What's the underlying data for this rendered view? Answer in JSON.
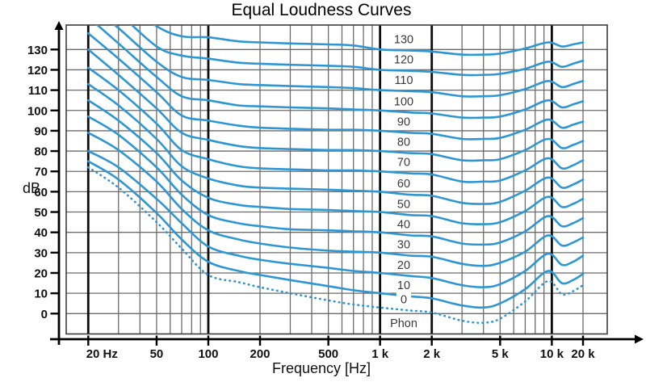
{
  "chart_data": {
    "type": "line",
    "title": "Equal Loudness Curves",
    "xlabel": "Frequency [Hz]",
    "ylabel": "dB",
    "unit_label": "Phon",
    "x_scale": "log",
    "xlim_hz": [
      14.5,
      21500
    ],
    "ylim_db": [
      -10,
      142
    ],
    "legend": "none",
    "grid": "on",
    "colors": {
      "curve": "#2e97d3",
      "grid_thin": "#6b6b6b",
      "grid_thick": "#0d0d0d",
      "box_edge": "#3d3d3d",
      "axis": "#000000",
      "tick_text": "#111111",
      "curve_label_text": "#3a3a3a",
      "background": "#ffffff"
    },
    "x_ticks": [
      {
        "hz": 20,
        "label": "20 Hz"
      },
      {
        "hz": 50,
        "label": "50"
      },
      {
        "hz": 100,
        "label": "100"
      },
      {
        "hz": 200,
        "label": "200"
      },
      {
        "hz": 500,
        "label": "500"
      },
      {
        "hz": 1000,
        "label": "1 k"
      },
      {
        "hz": 2000,
        "label": "2 k"
      },
      {
        "hz": 5000,
        "label": "5 k"
      },
      {
        "hz": 10000,
        "label": "10 k"
      },
      {
        "hz": 20000,
        "label": "20 k"
      }
    ],
    "y_ticks": [
      {
        "db": 0,
        "label": "0"
      },
      {
        "db": 10,
        "label": "10"
      },
      {
        "db": 20,
        "label": "20"
      },
      {
        "db": 30,
        "label": "30"
      },
      {
        "db": 40,
        "label": "40"
      },
      {
        "db": 50,
        "label": "50"
      },
      {
        "db": 60,
        "label": "60"
      },
      {
        "db": 70,
        "label": "70"
      },
      {
        "db": 80,
        "label": "80"
      },
      {
        "db": 90,
        "label": "90"
      },
      {
        "db": 100,
        "label": "100"
      },
      {
        "db": 110,
        "label": "110"
      },
      {
        "db": 120,
        "label": "120"
      },
      {
        "db": 130,
        "label": "130"
      }
    ],
    "v_gridlines_hz": [
      20,
      30,
      40,
      50,
      60,
      70,
      80,
      90,
      100,
      200,
      300,
      400,
      500,
      600,
      700,
      800,
      900,
      1000,
      2000,
      3000,
      4000,
      5000,
      6000,
      7000,
      8000,
      9000,
      10000,
      20000
    ],
    "v_gridlines_thick_hz": [
      20,
      100,
      1000,
      2000,
      10000
    ],
    "h_gridlines_db": [
      0,
      10,
      20,
      30,
      40,
      50,
      60,
      70,
      80,
      90,
      100,
      110,
      120,
      130
    ],
    "frequencies_hz": [
      20,
      30,
      50,
      70,
      100,
      150,
      200,
      300,
      500,
      700,
      1000,
      1500,
      2000,
      3000,
      4000,
      5000,
      7000,
      9500,
      12500,
      16000,
      20000
    ],
    "series": [
      {
        "phon": 130,
        "label": "130",
        "style": "solid",
        "values_db": [
          167,
          155.5,
          141.5,
          136.5,
          136,
          134,
          133.5,
          133,
          132.5,
          132,
          130,
          129.5,
          129,
          127.5,
          127.5,
          128,
          130.5,
          133.5,
          131.5,
          132.5,
          133.5
        ]
      },
      {
        "phon": 120,
        "label": "120",
        "style": "solid",
        "values_db": [
          160,
          148,
          131.5,
          127,
          125.5,
          123.5,
          123,
          122.5,
          122,
          121.5,
          120,
          119.5,
          119,
          117.5,
          117.5,
          118,
          120.5,
          124,
          121.5,
          123,
          124.5
        ]
      },
      {
        "phon": 110,
        "label": "110",
        "style": "solid",
        "values_db": [
          153,
          140.5,
          124,
          116.5,
          115,
          113,
          112.5,
          112,
          111.5,
          111,
          110,
          109.5,
          109,
          107,
          107,
          107.5,
          110.5,
          114.5,
          111.5,
          113,
          114.5
        ]
      },
      {
        "phon": 100,
        "label": "100",
        "style": "solid",
        "values_db": [
          146,
          133,
          116.5,
          107,
          105,
          102.5,
          102,
          101.5,
          101,
          100.5,
          100,
          99,
          98.5,
          96.5,
          96.5,
          97,
          100.5,
          105,
          101.5,
          103,
          104.5
        ]
      },
      {
        "phon": 90,
        "label": "90",
        "style": "solid",
        "values_db": [
          138,
          125.5,
          109,
          97.5,
          95,
          92.5,
          91.5,
          91,
          90.5,
          90.5,
          90,
          89,
          88.5,
          86,
          86,
          86.5,
          90.5,
          95.5,
          91.5,
          93,
          94.5
        ]
      },
      {
        "phon": 80,
        "label": "80",
        "style": "solid",
        "values_db": [
          130,
          117.5,
          101,
          89,
          85.5,
          82.5,
          81.5,
          81,
          80.5,
          80.5,
          80,
          79,
          78.5,
          75.5,
          75.5,
          76,
          80.5,
          86,
          81.5,
          83,
          85
        ]
      },
      {
        "phon": 70,
        "label": "70",
        "style": "solid",
        "values_db": [
          121,
          110,
          93.5,
          80.5,
          76,
          72.5,
          71.5,
          71,
          70.5,
          70.5,
          70,
          69,
          68.5,
          65,
          65,
          65.5,
          70.5,
          76.5,
          71.5,
          73,
          75.5
        ]
      },
      {
        "phon": 60,
        "label": "60",
        "style": "solid",
        "values_db": [
          113,
          102.5,
          86,
          72.5,
          66.5,
          63,
          62,
          61.5,
          61,
          60.5,
          60,
          58.5,
          58,
          54.5,
          54,
          55,
          60.5,
          67,
          62,
          63.5,
          66
        ]
      },
      {
        "phon": 50,
        "label": "50",
        "style": "solid",
        "values_db": [
          105,
          95,
          79,
          65.5,
          57,
          53.5,
          52.5,
          51.5,
          51,
          50.5,
          50,
          48.5,
          48,
          44.5,
          44,
          45,
          50.5,
          57.5,
          52.5,
          54,
          56.5
        ]
      },
      {
        "phon": 40,
        "label": "40",
        "style": "solid",
        "values_db": [
          97,
          88,
          72,
          58.5,
          48.5,
          44.5,
          43,
          41.5,
          41,
          40.5,
          40,
          38.5,
          38,
          34.5,
          34,
          35,
          40.5,
          48,
          43,
          44.5,
          47
        ]
      },
      {
        "phon": 30,
        "label": "30",
        "style": "solid",
        "values_db": [
          89,
          80.5,
          65,
          51.5,
          41,
          36.5,
          34.5,
          32.5,
          31,
          30.5,
          30,
          28.5,
          28,
          24.5,
          23.5,
          25,
          30.5,
          38.5,
          33.5,
          35,
          37.5
        ]
      },
      {
        "phon": 20,
        "label": "20",
        "style": "solid",
        "values_db": [
          80,
          72,
          56.5,
          44.5,
          33,
          28.5,
          26.5,
          24.5,
          22.5,
          21,
          20,
          18.5,
          17.5,
          14,
          13,
          14.5,
          21,
          29.5,
          24,
          25.5,
          28.5
        ]
      },
      {
        "phon": 10,
        "label": "10",
        "style": "solid",
        "values_db": [
          75,
          66,
          49.5,
          36.5,
          25.5,
          21,
          19,
          16.5,
          13.5,
          11.5,
          10,
          8.5,
          7.5,
          4,
          3,
          5,
          12,
          21,
          15,
          16.5,
          19.5
        ]
      },
      {
        "phon": 0,
        "label": "0",
        "style": "dotted",
        "values_db": [
          72,
          62,
          45,
          32,
          19,
          15.5,
          13,
          10,
          6.5,
          4.5,
          3,
          1.5,
          0.5,
          -3.5,
          -4.5,
          -2.5,
          6,
          16,
          9.5,
          11,
          14
        ]
      }
    ]
  }
}
